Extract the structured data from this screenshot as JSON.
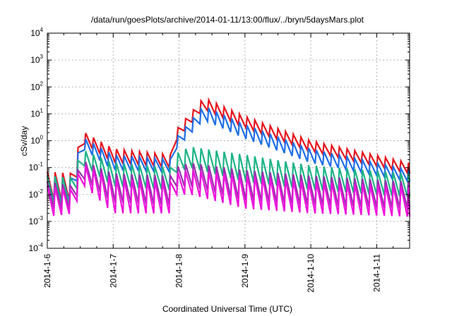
{
  "chart_data": {
    "type": "line",
    "title": "/data/run/goesPlots/archive/2014-01-11/13:00/flux/../bryn/5daysMars.plot",
    "xlabel": "Coordinated Universal Time (UTC)",
    "ylabel": "cSv/day",
    "y_scale": "log",
    "ylim": [
      0.0001,
      10000
    ],
    "y_ticks": [
      {
        "mantissa": "10",
        "exp": "-4",
        "value": 0.0001
      },
      {
        "mantissa": "10",
        "exp": "-3",
        "value": 0.001
      },
      {
        "mantissa": "10",
        "exp": "-2",
        "value": 0.01
      },
      {
        "mantissa": "10",
        "exp": "-1",
        "value": 0.1
      },
      {
        "mantissa": "10",
        "exp": "0",
        "value": 1
      },
      {
        "mantissa": "10",
        "exp": "1",
        "value": 10
      },
      {
        "mantissa": "10",
        "exp": "2",
        "value": 100
      },
      {
        "mantissa": "10",
        "exp": "3",
        "value": 1000
      },
      {
        "mantissa": "10",
        "exp": "4",
        "value": 10000
      }
    ],
    "xlim": [
      "2014-01-06 00:00",
      "2014-01-11 12:00"
    ],
    "x_ticks": [
      "2014-1-6",
      "2014-1-7",
      "2014-1-8",
      "2014-1-9",
      "2014-1-10",
      "2014-1-11"
    ],
    "grid": true,
    "sawtooth_period_hours": 2.8,
    "series": [
      {
        "color": "#e8141c",
        "keyframes": [
          {
            "t": "2014-01-06 00:00",
            "hi": 0.07,
            "lo": 0.006
          },
          {
            "t": "2014-01-06 10:00",
            "hi": 0.06,
            "lo": 0.006
          },
          {
            "t": "2014-01-06 12:00",
            "hi": 2.5,
            "lo": 1.0
          },
          {
            "t": "2014-01-07 00:00",
            "hi": 0.5,
            "lo": 0.15
          },
          {
            "t": "2014-01-07 21:00",
            "hi": 0.3,
            "lo": 0.1
          },
          {
            "t": "2014-01-07 21:30",
            "hi": 0.05,
            "lo": 0.02
          },
          {
            "t": "2014-01-07 22:00",
            "hi": 2.0,
            "lo": 0.8
          },
          {
            "t": "2014-01-08 09:00",
            "hi": 40,
            "lo": 15
          },
          {
            "t": "2014-01-09 00:00",
            "hi": 8,
            "lo": 3
          },
          {
            "t": "2014-01-10 00:00",
            "hi": 1.0,
            "lo": 0.4
          },
          {
            "t": "2014-01-11 12:00",
            "hi": 0.15,
            "lo": 0.06
          }
        ]
      },
      {
        "color": "#1f6fe8",
        "keyframes": [
          {
            "t": "2014-01-06 00:00",
            "hi": 0.05,
            "lo": 0.005
          },
          {
            "t": "2014-01-06 10:00",
            "hi": 0.04,
            "lo": 0.005
          },
          {
            "t": "2014-01-06 12:00",
            "hi": 1.5,
            "lo": 0.6
          },
          {
            "t": "2014-01-07 00:00",
            "hi": 0.3,
            "lo": 0.08
          },
          {
            "t": "2014-01-07 21:00",
            "hi": 0.2,
            "lo": 0.07
          },
          {
            "t": "2014-01-07 21:30",
            "hi": 0.03,
            "lo": 0.015
          },
          {
            "t": "2014-01-07 22:00",
            "hi": 1.0,
            "lo": 0.4
          },
          {
            "t": "2014-01-08 09:00",
            "hi": 20,
            "lo": 6
          },
          {
            "t": "2014-01-09 00:00",
            "hi": 4,
            "lo": 1.2
          },
          {
            "t": "2014-01-10 00:00",
            "hi": 0.5,
            "lo": 0.15
          },
          {
            "t": "2014-01-11 12:00",
            "hi": 0.08,
            "lo": 0.03
          }
        ]
      },
      {
        "color": "#1db486",
        "keyframes": [
          {
            "t": "2014-01-06 00:00",
            "hi": 0.05,
            "lo": 0.004
          },
          {
            "t": "2014-01-06 10:00",
            "hi": 0.04,
            "lo": 0.004
          },
          {
            "t": "2014-01-06 12:00",
            "hi": 0.5,
            "lo": 0.15
          },
          {
            "t": "2014-01-07 00:00",
            "hi": 0.15,
            "lo": 0.02
          },
          {
            "t": "2014-01-07 21:00",
            "hi": 0.1,
            "lo": 0.015
          },
          {
            "t": "2014-01-07 21:30",
            "hi": 0.02,
            "lo": 0.008
          },
          {
            "t": "2014-01-07 22:00",
            "hi": 0.3,
            "lo": 0.06
          },
          {
            "t": "2014-01-08 04:00",
            "hi": 0.6,
            "lo": 0.1
          },
          {
            "t": "2014-01-09 00:00",
            "hi": 0.3,
            "lo": 0.03
          },
          {
            "t": "2014-01-10 00:00",
            "hi": 0.12,
            "lo": 0.015
          },
          {
            "t": "2014-01-11 12:00",
            "hi": 0.06,
            "lo": 0.008
          }
        ]
      },
      {
        "color": "#9b2fae",
        "keyframes": [
          {
            "t": "2014-01-06 00:00",
            "hi": 0.03,
            "lo": 0.003
          },
          {
            "t": "2014-01-06 10:00",
            "hi": 0.02,
            "lo": 0.003
          },
          {
            "t": "2014-01-06 12:00",
            "hi": 0.2,
            "lo": 0.05
          },
          {
            "t": "2014-01-07 00:00",
            "hi": 0.06,
            "lo": 0.005
          },
          {
            "t": "2014-01-07 21:00",
            "hi": 0.05,
            "lo": 0.004
          },
          {
            "t": "2014-01-07 21:30",
            "hi": 0.01,
            "lo": 0.003
          },
          {
            "t": "2014-01-07 22:00",
            "hi": 0.1,
            "lo": 0.02
          },
          {
            "t": "2014-01-08 04:00",
            "hi": 0.15,
            "lo": 0.02
          },
          {
            "t": "2014-01-09 00:00",
            "hi": 0.08,
            "lo": 0.006
          },
          {
            "t": "2014-01-10 00:00",
            "hi": 0.05,
            "lo": 0.004
          },
          {
            "t": "2014-01-11 12:00",
            "hi": 0.03,
            "lo": 0.003
          }
        ]
      },
      {
        "color": "#ee14dc",
        "keyframes": [
          {
            "t": "2014-01-06 00:00",
            "hi": 0.02,
            "lo": 0.0015
          },
          {
            "t": "2014-01-06 10:00",
            "hi": 0.015,
            "lo": 0.002
          },
          {
            "t": "2014-01-06 12:00",
            "hi": 0.15,
            "lo": 0.03
          },
          {
            "t": "2014-01-07 00:00",
            "hi": 0.04,
            "lo": 0.002
          },
          {
            "t": "2014-01-07 21:00",
            "hi": 0.03,
            "lo": 0.002
          },
          {
            "t": "2014-01-07 21:30",
            "hi": 0.006,
            "lo": 0.002
          },
          {
            "t": "2014-01-07 22:00",
            "hi": 0.06,
            "lo": 0.01
          },
          {
            "t": "2014-01-08 04:00",
            "hi": 0.08,
            "lo": 0.01
          },
          {
            "t": "2014-01-09 00:00",
            "hi": 0.05,
            "lo": 0.003
          },
          {
            "t": "2014-01-10 00:00",
            "hi": 0.03,
            "lo": 0.002
          },
          {
            "t": "2014-01-11 12:00",
            "hi": 0.02,
            "lo": 0.0015
          }
        ]
      }
    ]
  }
}
